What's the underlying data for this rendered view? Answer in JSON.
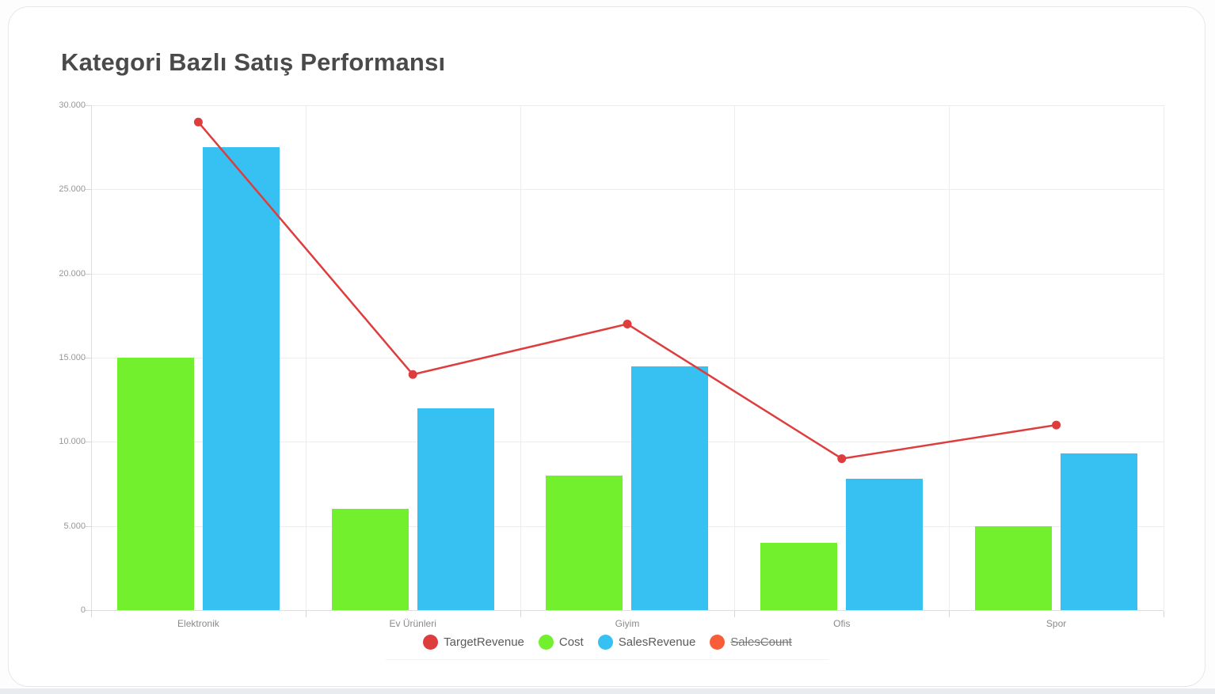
{
  "page": {
    "title": "Kategori Bazlı Satış Performansı"
  },
  "colors": {
    "target_revenue": "#de3d3d",
    "cost": "#72f02e",
    "sales_revenue": "#37c1f2",
    "sales_count": "#f95d38",
    "grid": "#ededee",
    "axis": "#dedee0"
  },
  "y_axis": {
    "tick_labels": [
      "30.000",
      "25.000",
      "20.000",
      "15.000",
      "10.000",
      "5.000",
      "0"
    ]
  },
  "legend": {
    "items": [
      {
        "label": "TargetRevenue",
        "color": "#de3d3d",
        "disabled": false
      },
      {
        "label": "Cost",
        "color": "#72f02e",
        "disabled": false
      },
      {
        "label": "SalesRevenue",
        "color": "#37c1f2",
        "disabled": false
      },
      {
        "label": "SalesCount",
        "color": "#f95d38",
        "disabled": true
      }
    ]
  },
  "chart_data": {
    "type": "bar",
    "title": "Kategori Bazlı Satış Performansı",
    "categories": [
      "Elektronik",
      "Ev Ürünleri",
      "Giyim",
      "Ofis",
      "Spor"
    ],
    "series": [
      {
        "name": "TargetRevenue",
        "type": "line",
        "color": "#de3d3d",
        "values": [
          29000,
          14000,
          17000,
          9000,
          11000
        ],
        "visible": true
      },
      {
        "name": "Cost",
        "type": "bar",
        "color": "#72f02e",
        "values": [
          15000,
          6000,
          8000,
          4000,
          5000
        ],
        "visible": true
      },
      {
        "name": "SalesRevenue",
        "type": "bar",
        "color": "#37c1f2",
        "values": [
          27500,
          12000,
          14500,
          7800,
          9300
        ],
        "visible": true
      },
      {
        "name": "SalesCount",
        "type": "line",
        "color": "#f95d38",
        "values": [],
        "visible": false
      }
    ],
    "xlabel": "",
    "ylabel": "",
    "ylim": [
      0,
      30000
    ],
    "y_tick_step": 5000,
    "y_tick_format": "dot-thousands",
    "grid": true,
    "legend_position": "bottom"
  }
}
